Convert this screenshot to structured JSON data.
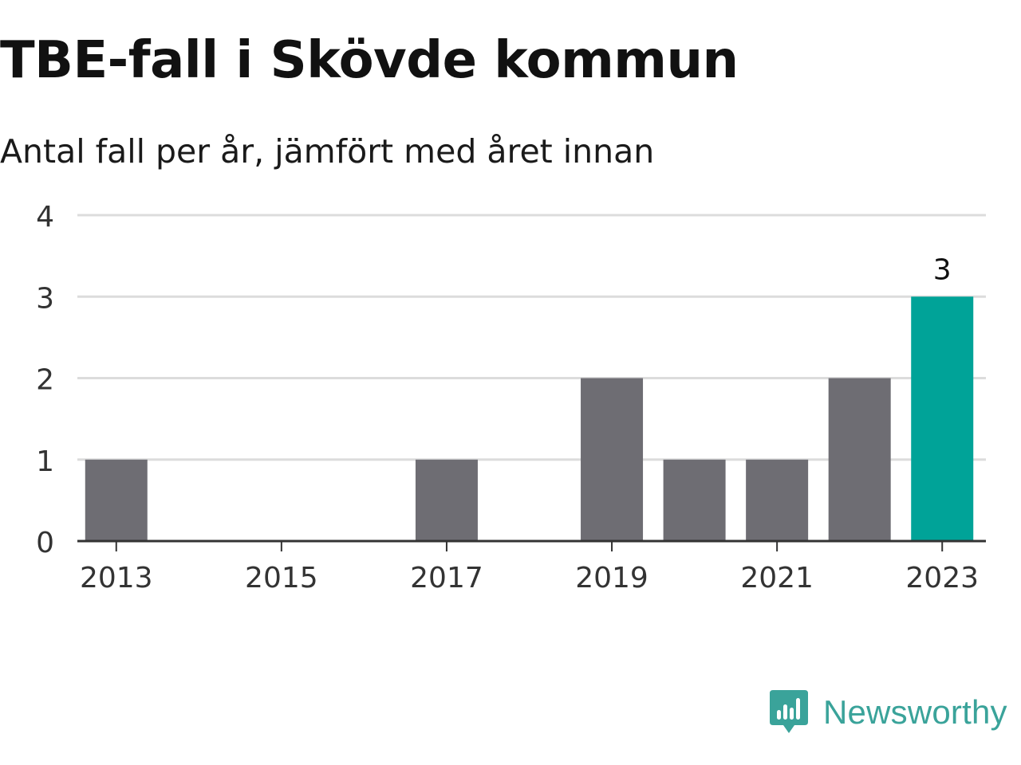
{
  "header": {
    "title": "TBE-fall i Skövde kommun",
    "subtitle": "Antal fall per år, jämfört med året innan"
  },
  "chart_data": {
    "type": "bar",
    "title": "TBE-fall i Skövde kommun",
    "subtitle": "Antal fall per år, jämfört med året innan",
    "xlabel": "",
    "ylabel": "",
    "categories": [
      "2013",
      "2014",
      "2015",
      "2016",
      "2017",
      "2018",
      "2019",
      "2020",
      "2021",
      "2022",
      "2023"
    ],
    "values": [
      1,
      0,
      0,
      0,
      1,
      0,
      2,
      1,
      1,
      2,
      3
    ],
    "x_tick_labels": [
      "2013",
      "2015",
      "2017",
      "2019",
      "2021",
      "2023"
    ],
    "y_ticks": [
      0,
      1,
      2,
      3,
      4
    ],
    "ylim": [
      0,
      4
    ],
    "grid": true,
    "highlight_category": "2023",
    "highlight_label": "3",
    "colors": {
      "bar": "#6e6d73",
      "highlight": "#00a398",
      "grid": "#dcdcdc",
      "axis": "#333333",
      "tick_text": "#333333"
    }
  },
  "branding": {
    "name": "Newsworthy",
    "icon": "newsworthy-logo-icon",
    "color": "#3aa39a"
  }
}
